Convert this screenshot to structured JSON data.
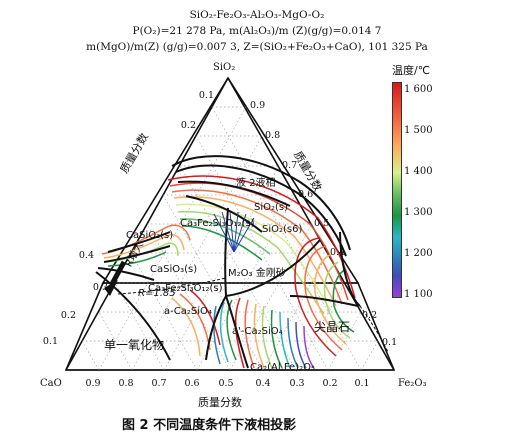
{
  "header": {
    "line1": "SiO₂-Fe₂O₃-Al₂O₃-MgO-O₂",
    "line2": "P(O₂)=21 278 Pa, m(Al₂O₃)/m (Z)(g/g)=0.014 7",
    "line3": "m(MgO)/m(Z) (g/g)=0.007 3, Z=(SiO₂+Fe₂O₃+CaO), 101 325 Pa"
  },
  "vertices": {
    "top": "SiO₂",
    "left": "CaO",
    "right": "Fe₂O₃"
  },
  "axis_titles": {
    "left": "质量分数",
    "right": "质量分数",
    "bottom": "质量分数"
  },
  "ticks": [
    "0.1",
    "0.2",
    "0.3",
    "0.4",
    "0.5",
    "0.6",
    "0.7",
    "0.8",
    "0.9"
  ],
  "phases": {
    "liquid2": "液 2液相",
    "sio2_s": "SiO₂(s)",
    "sio2_s6": "SiO₂(s6)",
    "cafesi": "Ca₃Fe₂Si₃O₁₂(s)",
    "casio3": "CaSiO₃(s)",
    "casio3_b": "CaSiO₃(s)",
    "m2o3": "M₂O₃ 金刚砂",
    "cafesi2": "Ca₃Fe₂Si₃O₁₂(s)",
    "a_ca2sio4": "a-Ca₂SiO₄",
    "ap_ca2sio4": "a'-Ca₂SiO₄",
    "r_label": "R增大",
    "r_value": "R=1.85",
    "spinel": "尖晶石",
    "monoxide": "单一氧化物",
    "ca2fe": "Ca₂(Al,Fe)₂O₅"
  },
  "legend": {
    "title": "温度/℃",
    "labels": [
      "1 600",
      "1 500",
      "1 400",
      "1 300",
      "1 200",
      "1 100"
    ],
    "colors": [
      "#d7191c",
      "#f46d43",
      "#fdae61",
      "#a6d96a",
      "#1a9641",
      "#2bb6c7",
      "#2c7fb8",
      "#3f4fb8",
      "#9b3fd8"
    ]
  },
  "caption": "图 2   不同温度条件下液相投影"
}
